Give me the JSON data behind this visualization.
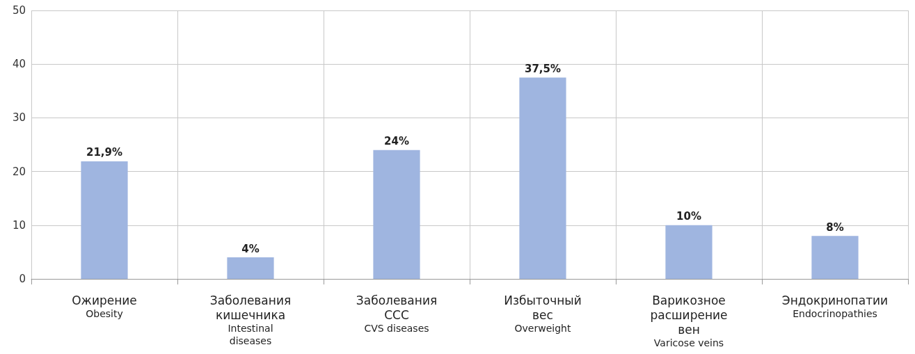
{
  "chart_data": {
    "type": "bar",
    "categories": [
      "Ожирение\nObesity",
      "Заболевания\nкишечника\nIntestinal\ndiseases",
      "Заболевания\nССС\nCVS diseases",
      "Избыточный\nвес\nOverweight",
      "Варикозное\nрасширение\nвен\nVaricose veins",
      "Эндокринопатии\nEndocrinopathies"
    ],
    "values": [
      21.9,
      4,
      24,
      37.5,
      10,
      8
    ],
    "value_labels": [
      "21,9%",
      "4%",
      "24%",
      "37,5%",
      "10%",
      "8%"
    ],
    "color": "#9fb5e0",
    "ylim": [
      0,
      50
    ],
    "yticks": [
      0,
      10,
      20,
      30,
      40,
      50
    ],
    "grid": true
  }
}
